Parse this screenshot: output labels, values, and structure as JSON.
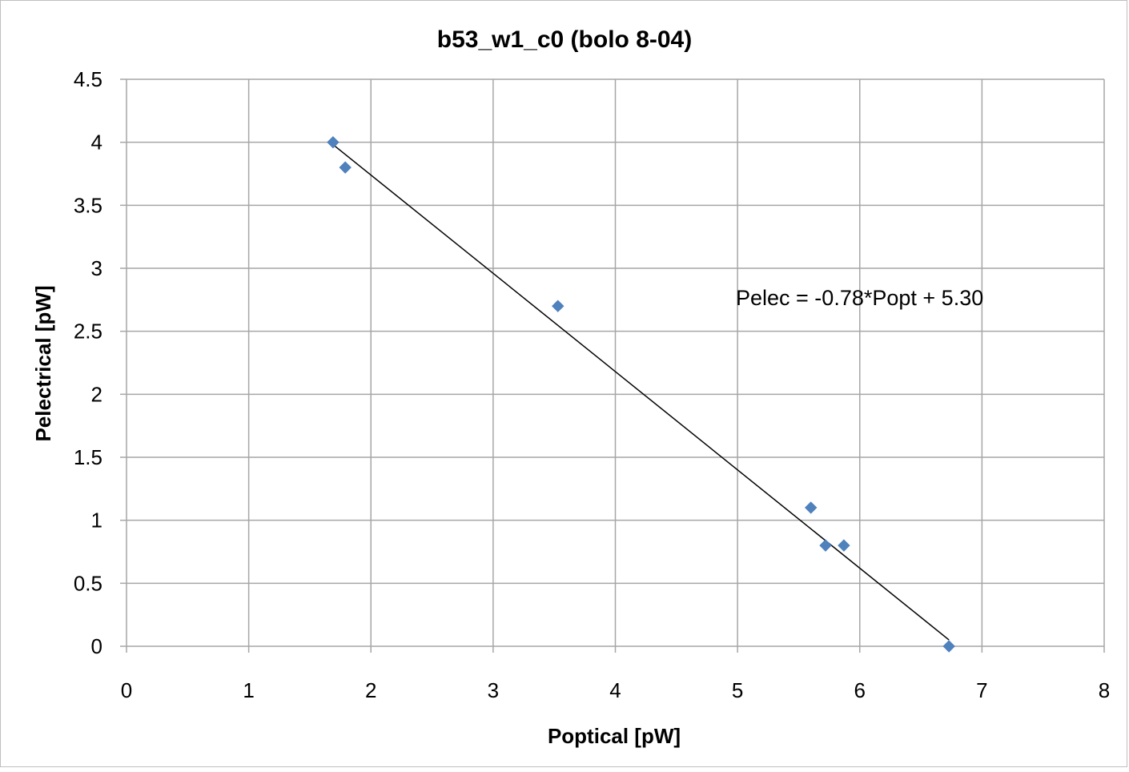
{
  "chart_data": {
    "type": "scatter",
    "title": "b53_w1_c0 (bolo 8-04)",
    "xlabel": "Poptical [pW]",
    "ylabel": "Pelectrical [pW]",
    "xlim": [
      0,
      8
    ],
    "ylim": [
      0,
      4.5
    ],
    "x_ticks": [
      "0",
      "1",
      "2",
      "3",
      "4",
      "5",
      "6",
      "7",
      "8"
    ],
    "y_ticks": [
      "0",
      "0.5",
      "1",
      "1.5",
      "2",
      "2.5",
      "3",
      "3.5",
      "4",
      "4.5"
    ],
    "grid": true,
    "legend": false,
    "marker": "diamond",
    "marker_color": "#4f81bd",
    "gridline_color": "#a6a6a6",
    "trendline_color": "#000000",
    "points": [
      {
        "x": 1.69,
        "y": 4.0
      },
      {
        "x": 1.79,
        "y": 3.8
      },
      {
        "x": 3.53,
        "y": 2.7
      },
      {
        "x": 5.6,
        "y": 1.1
      },
      {
        "x": 5.72,
        "y": 0.8
      },
      {
        "x": 5.87,
        "y": 0.8
      },
      {
        "x": 6.73,
        "y": 0.0
      }
    ],
    "trendline": {
      "type": "linear",
      "slope": -0.78,
      "intercept": 5.3,
      "x_range": [
        1.69,
        6.73
      ]
    },
    "annotation": "Pelec = -0.78*Popt + 5.30"
  }
}
